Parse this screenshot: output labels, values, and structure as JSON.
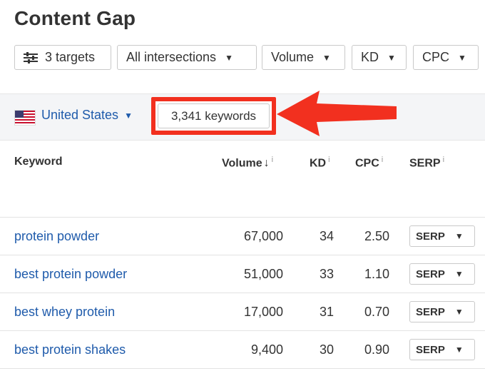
{
  "page_title": "Content Gap",
  "filters": {
    "targets_label": "3 targets",
    "intersections_label": "All intersections",
    "volume_label": "Volume",
    "kd_label": "KD",
    "cpc_label": "CPC",
    "caret_icon": "chevron-down-icon"
  },
  "location": {
    "country": "United States",
    "flag_icon": "us-flag-icon"
  },
  "keywords_count": "3,341 keywords",
  "annotation": {
    "color": "#f2301f"
  },
  "table": {
    "headers": {
      "keyword": "Keyword",
      "volume": "Volume",
      "volume_sort": "↓",
      "kd": "KD",
      "cpc": "CPC",
      "serp": "SERP",
      "info": "i"
    },
    "rows": [
      {
        "keyword": "protein powder",
        "volume": "67,000",
        "kd": "34",
        "cpc": "2.50",
        "serp": "SERP"
      },
      {
        "keyword": "best protein powder",
        "volume": "51,000",
        "kd": "33",
        "cpc": "1.10",
        "serp": "SERP"
      },
      {
        "keyword": "best whey protein",
        "volume": "17,000",
        "kd": "31",
        "cpc": "0.70",
        "serp": "SERP"
      },
      {
        "keyword": "best protein shakes",
        "volume": "9,400",
        "kd": "30",
        "cpc": "0.90",
        "serp": "SERP"
      }
    ]
  },
  "colors": {
    "link": "#1f5bab",
    "text": "#333333",
    "band": "#f4f5f7"
  }
}
